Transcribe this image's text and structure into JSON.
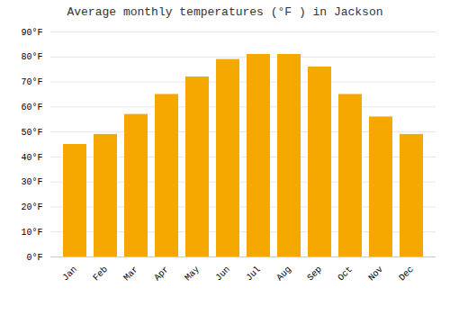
{
  "chart_data": {
    "type": "bar",
    "title": "Average monthly temperatures (°F ) in Jackson",
    "categories": [
      "Jan",
      "Feb",
      "Mar",
      "Apr",
      "May",
      "Jun",
      "Jul",
      "Aug",
      "Sep",
      "Oct",
      "Nov",
      "Dec"
    ],
    "values": [
      45,
      49,
      57,
      65,
      72,
      79,
      81,
      81,
      76,
      65,
      56,
      49
    ],
    "color": "#F5A800",
    "ylim": [
      0,
      90
    ],
    "yticks": [
      {
        "value": 0,
        "label": "0°F"
      },
      {
        "value": 10,
        "label": "10°F"
      },
      {
        "value": 20,
        "label": "20°F"
      },
      {
        "value": 30,
        "label": "30°F"
      },
      {
        "value": 40,
        "label": "40°F"
      },
      {
        "value": 50,
        "label": "50°F"
      },
      {
        "value": 60,
        "label": "60°F"
      },
      {
        "value": 70,
        "label": "70°F"
      },
      {
        "value": 80,
        "label": "80°F"
      },
      {
        "value": 90,
        "label": "90°F"
      }
    ],
    "grid": true
  }
}
